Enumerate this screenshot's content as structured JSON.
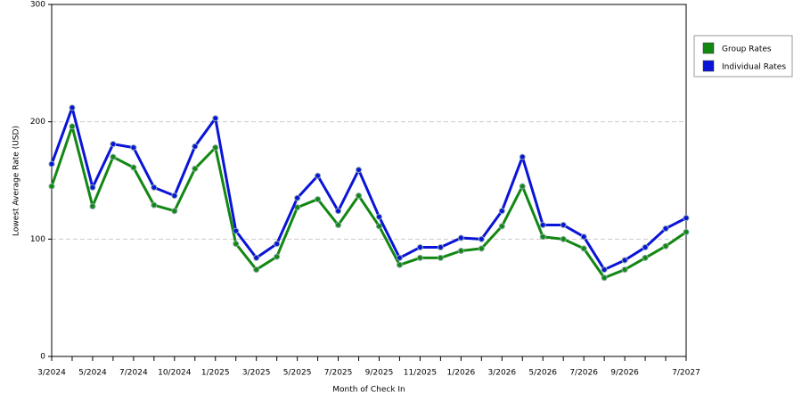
{
  "chart_data": {
    "type": "line",
    "x_label": "Month of Check In",
    "y_label": "Lowest Average Rate (USD)",
    "categories": [
      "3/2024",
      null,
      "5/2024",
      null,
      "7/2024",
      null,
      "10/2024",
      null,
      "1/2025",
      null,
      "3/2025",
      null,
      "5/2025",
      null,
      "7/2025",
      null,
      "9/2025",
      null,
      "11/2025",
      null,
      "1/2026",
      null,
      "3/2026",
      null,
      "5/2026",
      null,
      "7/2026",
      null,
      "9/2026",
      null,
      null,
      "7/2027"
    ],
    "series": [
      {
        "name": "Group Rates",
        "color": "#128712",
        "values": [
          145,
          196,
          128,
          170,
          161,
          129,
          124,
          160,
          178,
          96,
          74,
          85,
          127,
          134,
          112,
          137,
          111,
          78,
          84,
          84,
          90,
          92,
          111,
          145,
          102,
          100,
          92,
          67,
          74,
          84,
          94,
          106
        ]
      },
      {
        "name": "Individual Rates",
        "color": "#0a14d6",
        "values": [
          164,
          212,
          144,
          181,
          178,
          144,
          137,
          179,
          203,
          107,
          84,
          96,
          135,
          154,
          124,
          159,
          119,
          84,
          93,
          93,
          101,
          100,
          124,
          170,
          112,
          112,
          102,
          74,
          82,
          93,
          109,
          118
        ]
      }
    ],
    "ylim": [
      0,
      300
    ],
    "yticks": [
      0,
      100,
      200,
      300
    ],
    "grid": true,
    "legend": "right"
  }
}
